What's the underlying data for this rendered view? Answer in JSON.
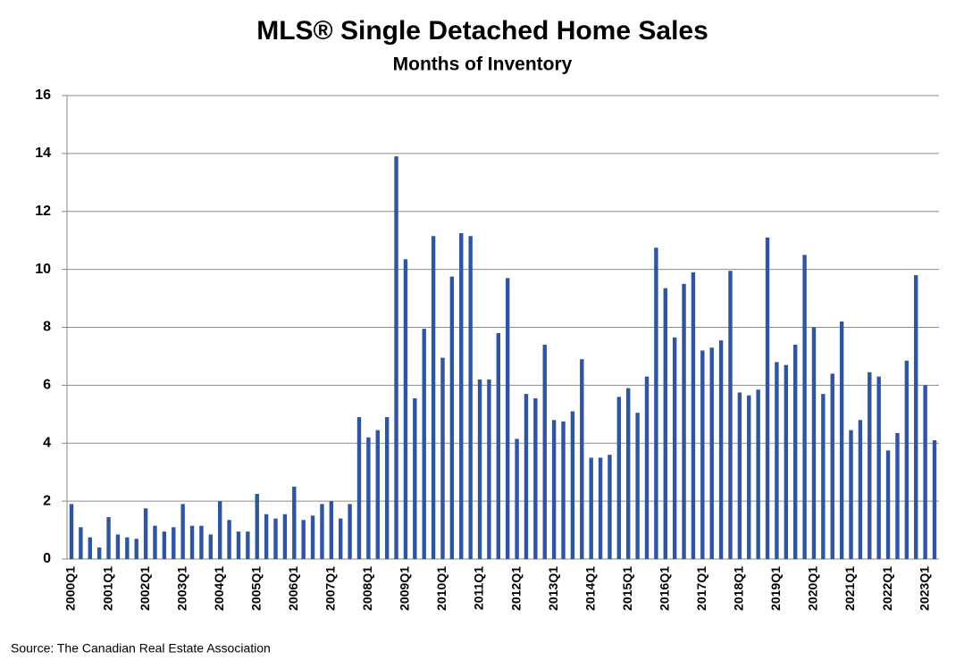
{
  "chart_data": {
    "type": "bar",
    "title": "MLS® Single Detached Home Sales",
    "subtitle": "Months of Inventory",
    "source": "Source: The Canadian Real Estate Association",
    "color": "#2e55a0",
    "grid": true,
    "ylim": [
      0,
      16
    ],
    "yticks": [
      0,
      2,
      4,
      6,
      8,
      10,
      12,
      14,
      16
    ],
    "categories": [
      "2000Q1",
      null,
      null,
      null,
      "2001Q1",
      null,
      null,
      null,
      "2002Q1",
      null,
      null,
      null,
      "2003Q1",
      null,
      null,
      null,
      "2004Q1",
      null,
      null,
      null,
      "2005Q1",
      null,
      null,
      null,
      "2006Q1",
      null,
      null,
      null,
      "2007Q1",
      null,
      null,
      null,
      "2008Q1",
      null,
      null,
      null,
      "2009Q1",
      null,
      null,
      null,
      "2010Q1",
      null,
      null,
      null,
      "2011Q1",
      null,
      null,
      null,
      "2012Q1",
      null,
      null,
      null,
      "2013Q1",
      null,
      null,
      null,
      "2014Q1",
      null,
      null,
      null,
      "2015Q1",
      null,
      null,
      null,
      "2016Q1",
      null,
      null,
      null,
      "2017Q1",
      null,
      null,
      null,
      "2018Q1",
      null,
      null,
      null,
      "2019Q1",
      null,
      null,
      null,
      "2020Q1",
      null,
      null,
      null,
      "2021Q1",
      null,
      null,
      null,
      "2022Q1",
      null,
      null,
      null,
      "2023Q1",
      null
    ],
    "values": [
      1.9,
      1.1,
      0.75,
      0.4,
      1.45,
      0.85,
      0.75,
      0.7,
      1.75,
      1.15,
      0.95,
      1.1,
      1.9,
      1.15,
      1.15,
      0.85,
      2.0,
      1.35,
      0.95,
      0.95,
      2.25,
      1.55,
      1.4,
      1.55,
      2.5,
      1.35,
      1.5,
      1.9,
      2.0,
      1.4,
      1.9,
      4.9,
      4.2,
      4.45,
      4.9,
      13.9,
      10.35,
      5.55,
      7.95,
      11.15,
      6.95,
      9.75,
      11.25,
      11.15,
      6.2,
      6.2,
      7.8,
      9.7,
      4.15,
      5.7,
      5.55,
      7.4,
      4.8,
      4.75,
      5.1,
      6.9,
      3.5,
      3.5,
      3.6,
      5.6,
      5.9,
      5.05,
      6.3,
      10.75,
      9.35,
      7.65,
      9.5,
      9.9,
      7.2,
      7.3,
      7.55,
      9.95,
      5.75,
      5.65,
      5.85,
      11.1,
      6.8,
      6.7,
      7.4,
      10.5,
      8.0,
      5.7,
      6.4,
      8.2,
      4.45,
      4.8,
      6.45,
      6.3,
      3.75,
      4.35,
      6.85,
      9.8,
      6.0,
      4.1
    ]
  }
}
